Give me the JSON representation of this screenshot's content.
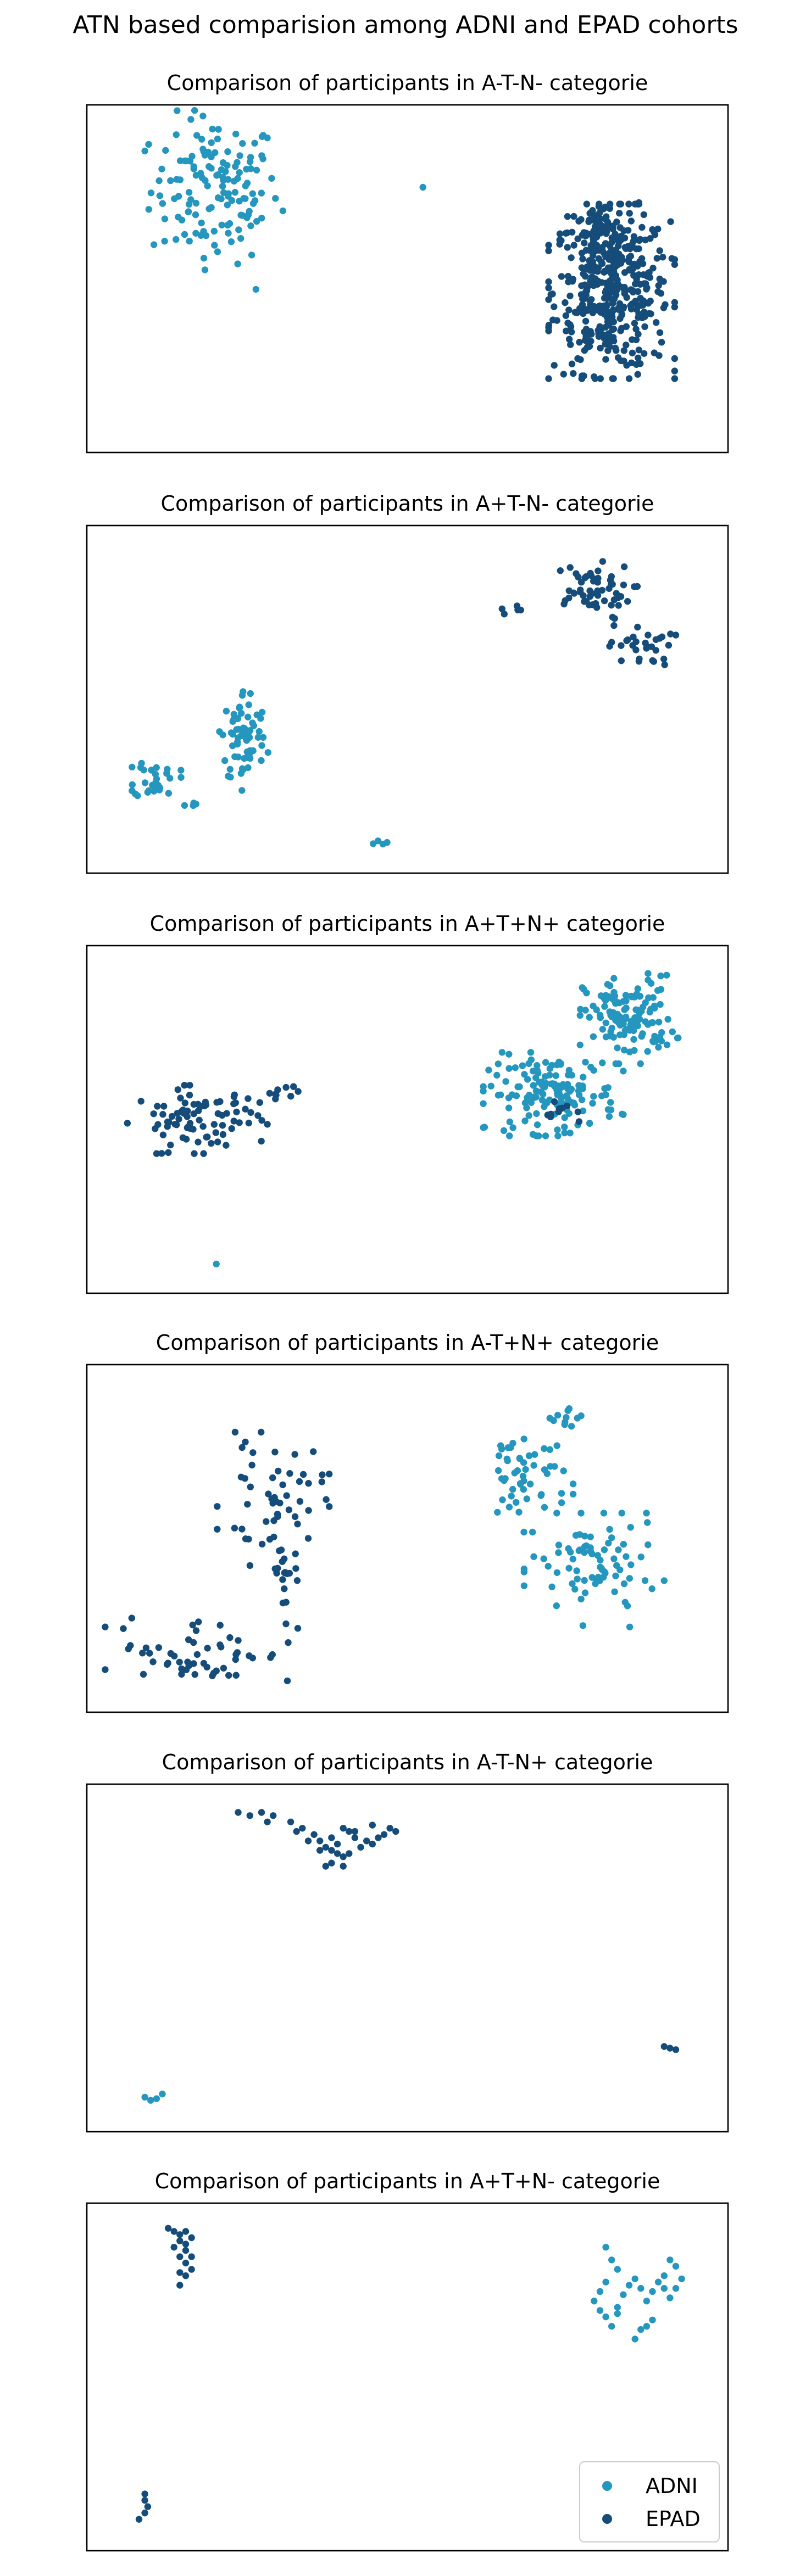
{
  "figure": {
    "suptitle": "ATN based comparision among ADNI and EPAD cohorts"
  },
  "colors": {
    "ADNI": "#2596be",
    "EPAD": "#154c79"
  },
  "legend": {
    "placement": "lower-right of last panel",
    "entries": [
      {
        "name": "ADNI",
        "color": "#2596be"
      },
      {
        "name": "EPAD",
        "color": "#154c79"
      }
    ]
  },
  "chart_data": [
    {
      "type": "scatter",
      "title": "Comparison of participants in A-T-N- categorie",
      "xlabel": "",
      "ylabel": "",
      "axes_visible": false,
      "grid": false,
      "xlim": [
        0,
        100
      ],
      "ylim": [
        0,
        100
      ],
      "series": [
        {
          "name": "ADNI",
          "clusters": [
            {
              "cx": 17,
              "cy": 78,
              "rx": 10,
              "ry": 21,
              "n": 140
            },
            {
              "cx": 53,
              "cy": 79,
              "rx": 0.6,
              "ry": 0.6,
              "n": 1
            },
            {
              "cx": 24,
              "cy": 47,
              "rx": 0.6,
              "ry": 0.6,
              "n": 1
            }
          ]
        },
        {
          "name": "EPAD",
          "clusters": [
            {
              "cx": 85,
              "cy": 46,
              "rx": 9,
              "ry": 23,
              "n": 420
            },
            {
              "cx": 83,
              "cy": 64,
              "rx": 6,
              "ry": 9,
              "n": 60
            }
          ]
        }
      ]
    },
    {
      "type": "scatter",
      "title": "Comparison of participants in A+T-N- categorie",
      "xlabel": "",
      "ylabel": "",
      "axes_visible": false,
      "grid": false,
      "xlim": [
        0,
        100
      ],
      "ylim": [
        0,
        100
      ],
      "series": [
        {
          "name": "ADNI",
          "clusters": [
            {
              "cx": 22,
              "cy": 38,
              "rx": 3.5,
              "ry": 14,
              "n": 70
            },
            {
              "cx": 7,
              "cy": 25,
              "rx": 3.5,
              "ry": 6,
              "n": 28
            },
            {
              "cx": 13,
              "cy": 18,
              "rx": 1.5,
              "ry": 1.5,
              "n": 4
            },
            {
              "cx": 45,
              "cy": 5,
              "rx": 1.5,
              "ry": 1,
              "n": 4
            }
          ]
        },
        {
          "name": "EPAD",
          "clusters": [
            {
              "cx": 81,
              "cy": 84,
              "rx": 7,
              "ry": 8,
              "n": 55
            },
            {
              "cx": 90,
              "cy": 67,
              "rx": 5,
              "ry": 6,
              "n": 30
            },
            {
              "cx": 68,
              "cy": 78,
              "rx": 2,
              "ry": 2,
              "n": 5
            }
          ]
        }
      ]
    },
    {
      "type": "scatter",
      "title": "Comparison of participants in A+T+N+ categorie",
      "xlabel": "",
      "ylabel": "",
      "axes_visible": false,
      "grid": false,
      "xlim": [
        0,
        100
      ],
      "ylim": [
        0,
        100
      ],
      "series": [
        {
          "name": "ADNI",
          "clusters": [
            {
              "cx": 88,
              "cy": 82,
              "rx": 7,
              "ry": 12,
              "n": 130
            },
            {
              "cx": 75,
              "cy": 58,
              "rx": 10,
              "ry": 11,
              "n": 150
            },
            {
              "cx": 17,
              "cy": 4,
              "rx": 0.6,
              "ry": 0.6,
              "n": 1
            }
          ]
        },
        {
          "name": "EPAD",
          "clusters": [
            {
              "cx": 14,
              "cy": 50,
              "rx": 10,
              "ry": 9,
              "n": 85
            },
            {
              "cx": 28,
              "cy": 58,
              "rx": 3,
              "ry": 4,
              "n": 10
            },
            {
              "cx": 77,
              "cy": 52,
              "rx": 3,
              "ry": 3,
              "n": 10
            }
          ]
        }
      ]
    },
    {
      "type": "scatter",
      "title": "Comparison of participants in A-T+N+ categorie",
      "xlabel": "",
      "ylabel": "",
      "axes_visible": false,
      "grid": false,
      "xlim": [
        0,
        100
      ],
      "ylim": [
        0,
        100
      ],
      "series": [
        {
          "name": "ADNI",
          "clusters": [
            {
              "cx": 70,
              "cy": 70,
              "rx": 7,
              "ry": 15,
              "n": 55
            },
            {
              "cx": 82,
              "cy": 40,
              "rx": 10,
              "ry": 15,
              "n": 80
            },
            {
              "cx": 78,
              "cy": 88,
              "rx": 4,
              "ry": 5,
              "n": 10
            }
          ]
        },
        {
          "name": "EPAD",
          "clusters": [
            {
              "cx": 27,
              "cy": 62,
              "rx": 8,
              "ry": 18,
              "n": 55
            },
            {
              "cx": 15,
              "cy": 15,
              "rx": 14,
              "ry": 10,
              "n": 55
            },
            {
              "cx": 29,
              "cy": 38,
              "rx": 3,
              "ry": 10,
              "n": 15
            }
          ]
        }
      ]
    },
    {
      "type": "scatter",
      "title": "Comparison of participants in A-T-N+ categorie",
      "xlabel": "",
      "ylabel": "",
      "axes_visible": false,
      "grid": false,
      "xlim": [
        0,
        100
      ],
      "ylim": [
        0,
        100
      ],
      "series": [
        {
          "name": "ADNI",
          "points": [
            [
              5,
              6
            ],
            [
              6,
              5
            ],
            [
              8,
              7
            ],
            [
              7,
              5.5
            ]
          ]
        },
        {
          "name": "EPAD",
          "points": [
            [
              21,
              96
            ],
            [
              23,
              95
            ],
            [
              25,
              96
            ],
            [
              27,
              95
            ],
            [
              26,
              93
            ],
            [
              30,
              93
            ],
            [
              31,
              90
            ],
            [
              32,
              91
            ],
            [
              34,
              89
            ],
            [
              33,
              87
            ],
            [
              35,
              87
            ],
            [
              36,
              85
            ],
            [
              37,
              88
            ],
            [
              38,
              86
            ],
            [
              39,
              91
            ],
            [
              40,
              90
            ],
            [
              41,
              88
            ],
            [
              42,
              85
            ],
            [
              40,
              83
            ],
            [
              39,
              82
            ],
            [
              37,
              84
            ],
            [
              43,
              87
            ],
            [
              44,
              86
            ],
            [
              45,
              88
            ],
            [
              46,
              89
            ],
            [
              47,
              91
            ],
            [
              48,
              90
            ],
            [
              44,
              92
            ],
            [
              41,
              90
            ],
            [
              36,
              79
            ],
            [
              37,
              80
            ],
            [
              35,
              84
            ],
            [
              38,
              83
            ],
            [
              39,
              79
            ],
            [
              94,
              22
            ],
            [
              95,
              21.5
            ],
            [
              96,
              21
            ]
          ]
        }
      ]
    },
    {
      "type": "scatter",
      "title": "Comparison of participants in A+T+N- categorie",
      "xlabel": "",
      "ylabel": "",
      "axes_visible": false,
      "grid": false,
      "xlim": [
        0,
        100
      ],
      "ylim": [
        0,
        100
      ],
      "series": [
        {
          "name": "ADNI",
          "points": [
            [
              84,
              91
            ],
            [
              85,
              87
            ],
            [
              86,
              84
            ],
            [
              84,
              80
            ],
            [
              83,
              77
            ],
            [
              82,
              74
            ],
            [
              83,
              71
            ],
            [
              84,
              69
            ],
            [
              86,
              72
            ],
            [
              87,
              76
            ],
            [
              88,
              79
            ],
            [
              89,
              81
            ],
            [
              90,
              78
            ],
            [
              91,
              74
            ],
            [
              92,
              77
            ],
            [
              93,
              80
            ],
            [
              94,
              78
            ],
            [
              95,
              75
            ],
            [
              96,
              78
            ],
            [
              94,
              82
            ],
            [
              97,
              81
            ],
            [
              96,
              85
            ],
            [
              95,
              87
            ],
            [
              90,
              65
            ],
            [
              89,
              62
            ],
            [
              91,
              66
            ],
            [
              92,
              68
            ],
            [
              85,
              66
            ],
            [
              86,
              70
            ]
          ]
        },
        {
          "name": "EPAD",
          "points": [
            [
              9,
              97
            ],
            [
              10,
              96
            ],
            [
              11,
              95
            ],
            [
              12,
              96
            ],
            [
              13,
              94
            ],
            [
              12,
              92
            ],
            [
              11,
              93
            ],
            [
              10,
              91
            ],
            [
              12,
              90
            ],
            [
              13,
              88
            ],
            [
              11,
              88
            ],
            [
              12,
              86
            ],
            [
              13,
              84
            ],
            [
              12,
              82
            ],
            [
              11,
              79
            ],
            [
              11,
              83
            ],
            [
              5,
              13
            ],
            [
              5.5,
              9
            ],
            [
              5,
              7
            ],
            [
              4,
              5
            ],
            [
              5,
              11
            ]
          ]
        }
      ]
    }
  ]
}
